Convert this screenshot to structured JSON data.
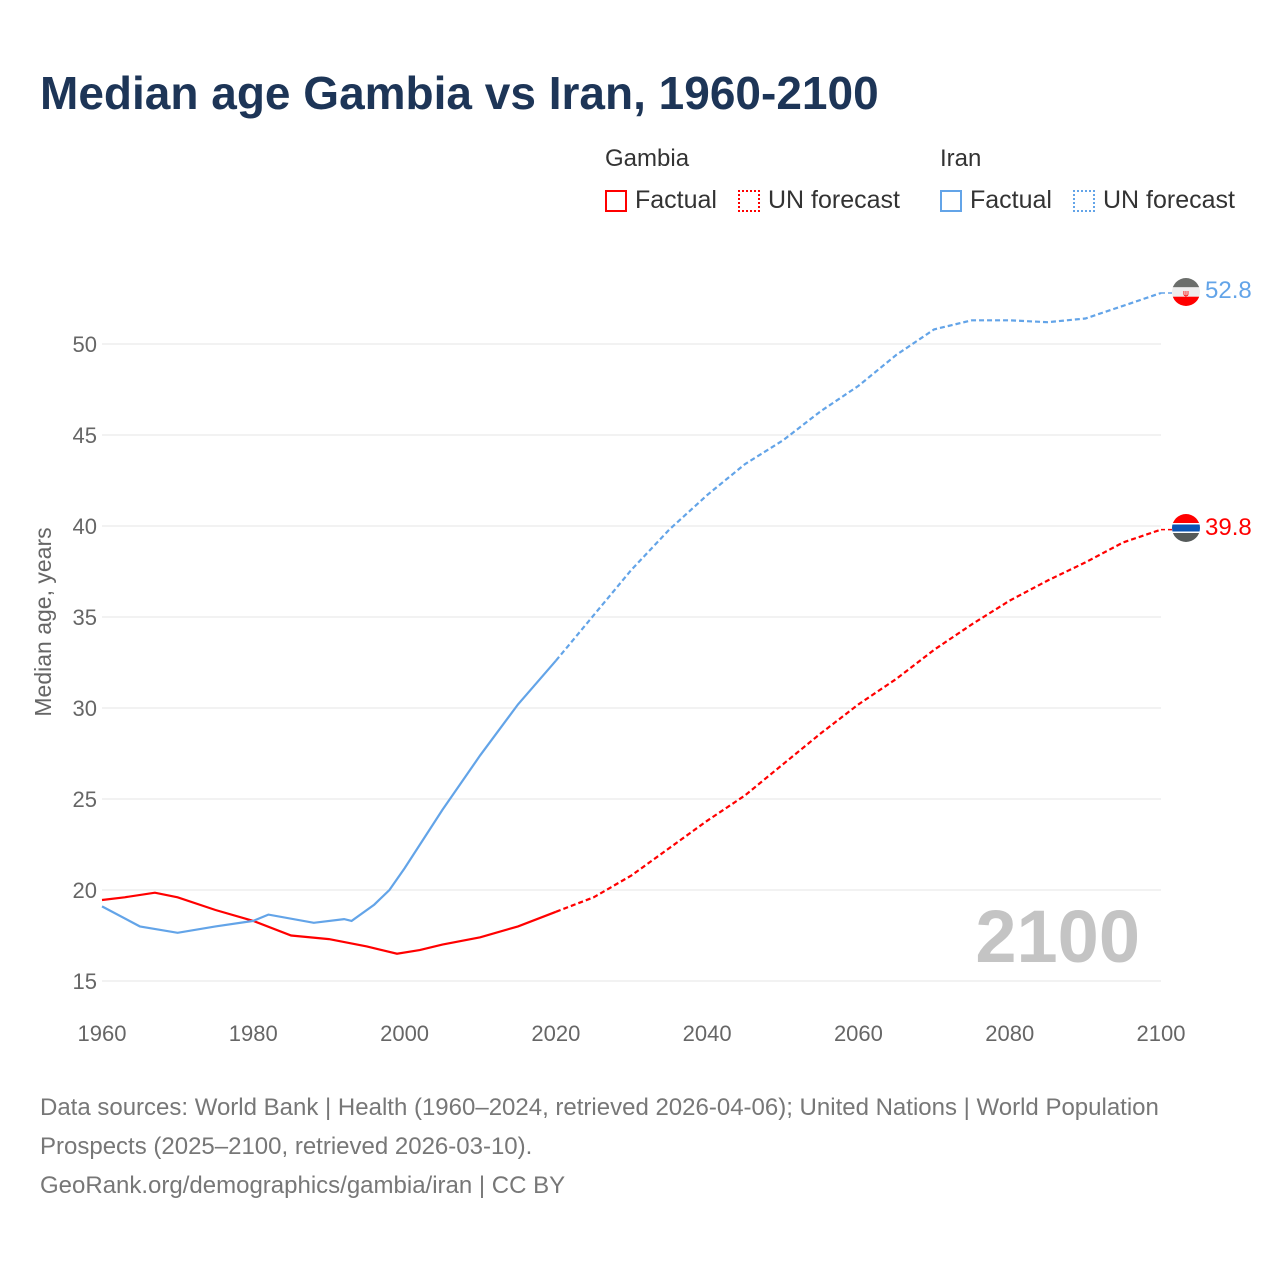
{
  "title": "Median age Gambia vs Iran, 1960-2100",
  "legend": {
    "groups": [
      {
        "name": "Gambia",
        "items": [
          "Factual",
          "UN forecast"
        ],
        "color": "#ff0000"
      },
      {
        "name": "Iran",
        "items": [
          "Factual",
          "UN forecast"
        ],
        "color": "#63a4e8"
      }
    ]
  },
  "footer": {
    "line1": "Data sources: World Bank | Health (1960–2024, retrieved 2026-04-06); United Nations | World Population Prospects (2025–2100, retrieved 2026-03-10).",
    "line2": "GeoRank.org/demographics/gambia/iran | CC BY"
  },
  "chart_data": {
    "type": "line",
    "title": "Median age Gambia vs Iran, 1960-2100",
    "xlabel": "",
    "ylabel": "Median age, years",
    "xlim": [
      1960,
      2100
    ],
    "ylim": [
      15,
      53
    ],
    "xticks": [
      1960,
      1980,
      2000,
      2020,
      2040,
      2060,
      2080,
      2100
    ],
    "yticks": [
      15,
      20,
      25,
      30,
      35,
      40,
      45,
      50
    ],
    "forecast_start": 2025,
    "watermark": "2100",
    "series": [
      {
        "name": "Gambia",
        "color": "#ff0000",
        "end_label": "39.8",
        "x": [
          1960,
          1963,
          1967,
          1970,
          1975,
          1980,
          1985,
          1990,
          1995,
          1999,
          2002,
          2005,
          2010,
          2015,
          2020,
          2025,
          2030,
          2035,
          2040,
          2045,
          2050,
          2055,
          2060,
          2065,
          2070,
          2075,
          2080,
          2085,
          2090,
          2095,
          2100
        ],
        "y": [
          19.45,
          19.6,
          19.85,
          19.6,
          18.9,
          18.3,
          17.5,
          17.3,
          16.9,
          16.5,
          16.7,
          17.0,
          17.4,
          18.0,
          18.8,
          19.6,
          20.8,
          22.3,
          23.8,
          25.2,
          26.9,
          28.6,
          30.2,
          31.6,
          33.2,
          34.6,
          35.9,
          37.0,
          38.0,
          39.1,
          39.8
        ]
      },
      {
        "name": "Iran",
        "color": "#63a4e8",
        "end_label": "52.8",
        "x": [
          1960,
          1965,
          1970,
          1975,
          1980,
          1982,
          1988,
          1992,
          1993,
          1996,
          1998,
          2000,
          2005,
          2010,
          2015,
          2020,
          2025,
          2030,
          2035,
          2040,
          2045,
          2050,
          2055,
          2060,
          2065,
          2070,
          2075,
          2080,
          2085,
          2090,
          2095,
          2100
        ],
        "y": [
          19.1,
          18.0,
          17.65,
          18.0,
          18.3,
          18.65,
          18.2,
          18.4,
          18.3,
          19.2,
          20.0,
          21.2,
          24.4,
          27.4,
          30.2,
          32.6,
          35.1,
          37.6,
          39.8,
          41.7,
          43.4,
          44.7,
          46.3,
          47.7,
          49.4,
          50.8,
          51.3,
          51.3,
          51.2,
          51.4,
          52.1,
          52.8
        ]
      }
    ]
  }
}
